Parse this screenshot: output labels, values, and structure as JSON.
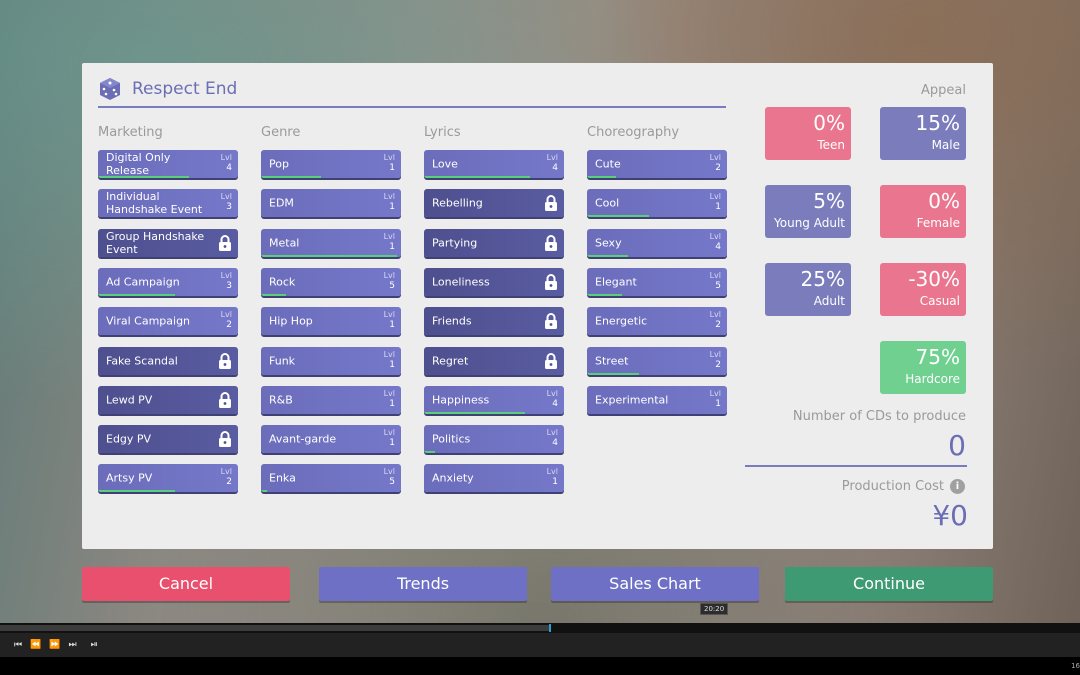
{
  "title": "Respect End",
  "columns": [
    {
      "header": "Marketing",
      "items": [
        {
          "label": "Digital Only Release",
          "lvl": "4",
          "progress": 0.65
        },
        {
          "label": "Individual Handshake Event",
          "lvl": "3",
          "progress": 0
        },
        {
          "label": "Group Handshake Event",
          "locked": true
        },
        {
          "label": "Ad Campaign",
          "lvl": "3",
          "progress": 0.55
        },
        {
          "label": "Viral Campaign",
          "lvl": "2",
          "progress": 0
        },
        {
          "label": "Fake Scandal",
          "locked": true
        },
        {
          "label": "Lewd PV",
          "locked": true
        },
        {
          "label": "Edgy PV",
          "locked": true
        },
        {
          "label": "Artsy PV",
          "lvl": "2",
          "progress": 0.55
        }
      ]
    },
    {
      "header": "Genre",
      "items": [
        {
          "label": "Pop",
          "lvl": "1",
          "progress": 0.43
        },
        {
          "label": "EDM",
          "lvl": "1",
          "progress": 0
        },
        {
          "label": "Metal",
          "lvl": "1",
          "progress": 0.97
        },
        {
          "label": "Rock",
          "lvl": "5",
          "progress": 0.18
        },
        {
          "label": "Hip Hop",
          "lvl": "1",
          "progress": 0
        },
        {
          "label": "Funk",
          "lvl": "1",
          "progress": 0
        },
        {
          "label": "R&B",
          "lvl": "1",
          "progress": 0
        },
        {
          "label": "Avant-garde",
          "lvl": "1",
          "progress": 0
        },
        {
          "label": "Enka",
          "lvl": "5",
          "progress": 0.04
        }
      ]
    },
    {
      "header": "Lyrics",
      "items": [
        {
          "label": "Love",
          "lvl": "4",
          "progress": 0.76
        },
        {
          "label": "Rebelling",
          "locked": true
        },
        {
          "label": "Partying",
          "locked": true
        },
        {
          "label": "Loneliness",
          "locked": true
        },
        {
          "label": "Friends",
          "locked": true
        },
        {
          "label": "Regret",
          "locked": true
        },
        {
          "label": "Happiness",
          "lvl": "4",
          "progress": 0.72
        },
        {
          "label": "Politics",
          "lvl": "4",
          "progress": 0.08
        },
        {
          "label": "Anxiety",
          "lvl": "1",
          "progress": 0
        }
      ]
    },
    {
      "header": "Choreography",
      "items": [
        {
          "label": "Cute",
          "lvl": "2",
          "progress": 0.21
        },
        {
          "label": "Cool",
          "lvl": "1",
          "progress": 0.44
        },
        {
          "label": "Sexy",
          "lvl": "4",
          "progress": 0.29
        },
        {
          "label": "Elegant",
          "lvl": "5",
          "progress": 0.25
        },
        {
          "label": "Energetic",
          "lvl": "2",
          "progress": 0
        },
        {
          "label": "Street",
          "lvl": "2",
          "progress": 0.37
        },
        {
          "label": "Experimental",
          "lvl": "1",
          "progress": 0
        }
      ]
    }
  ],
  "lvl_label": "Lvl",
  "appeal": {
    "label": "Appeal",
    "boxes": [
      {
        "value": "0%",
        "label": "Teen",
        "color": "#e9768e"
      },
      {
        "value": "15%",
        "label": "Male",
        "color": "#7a7cbb"
      },
      {
        "value": "5%",
        "label": "Young Adult",
        "color": "#7a7cbb"
      },
      {
        "value": "0%",
        "label": "Female",
        "color": "#e9768e"
      },
      {
        "value": "25%",
        "label": "Adult",
        "color": "#7a7cbb"
      },
      {
        "value": "-30%",
        "label": "Casual",
        "color": "#e9768e"
      },
      {
        "value": "75%",
        "label": "Hardcore",
        "color": "#6fd08f"
      }
    ]
  },
  "cds": {
    "label": "Number of CDs to produce",
    "value": "0"
  },
  "cost": {
    "label": "Production Cost",
    "value": "¥0",
    "info": "i"
  },
  "buttons": {
    "cancel": "Cancel",
    "trends": "Trends",
    "sales": "Sales Chart",
    "continue": "Continue"
  },
  "colors": {
    "cancel": "#e8506e",
    "trends": "#6d70c4",
    "sales": "#6d70c4",
    "continue": "#3e9a72"
  },
  "player": {
    "tooltip": "20:20",
    "progress": 0.508,
    "corner": "16"
  }
}
